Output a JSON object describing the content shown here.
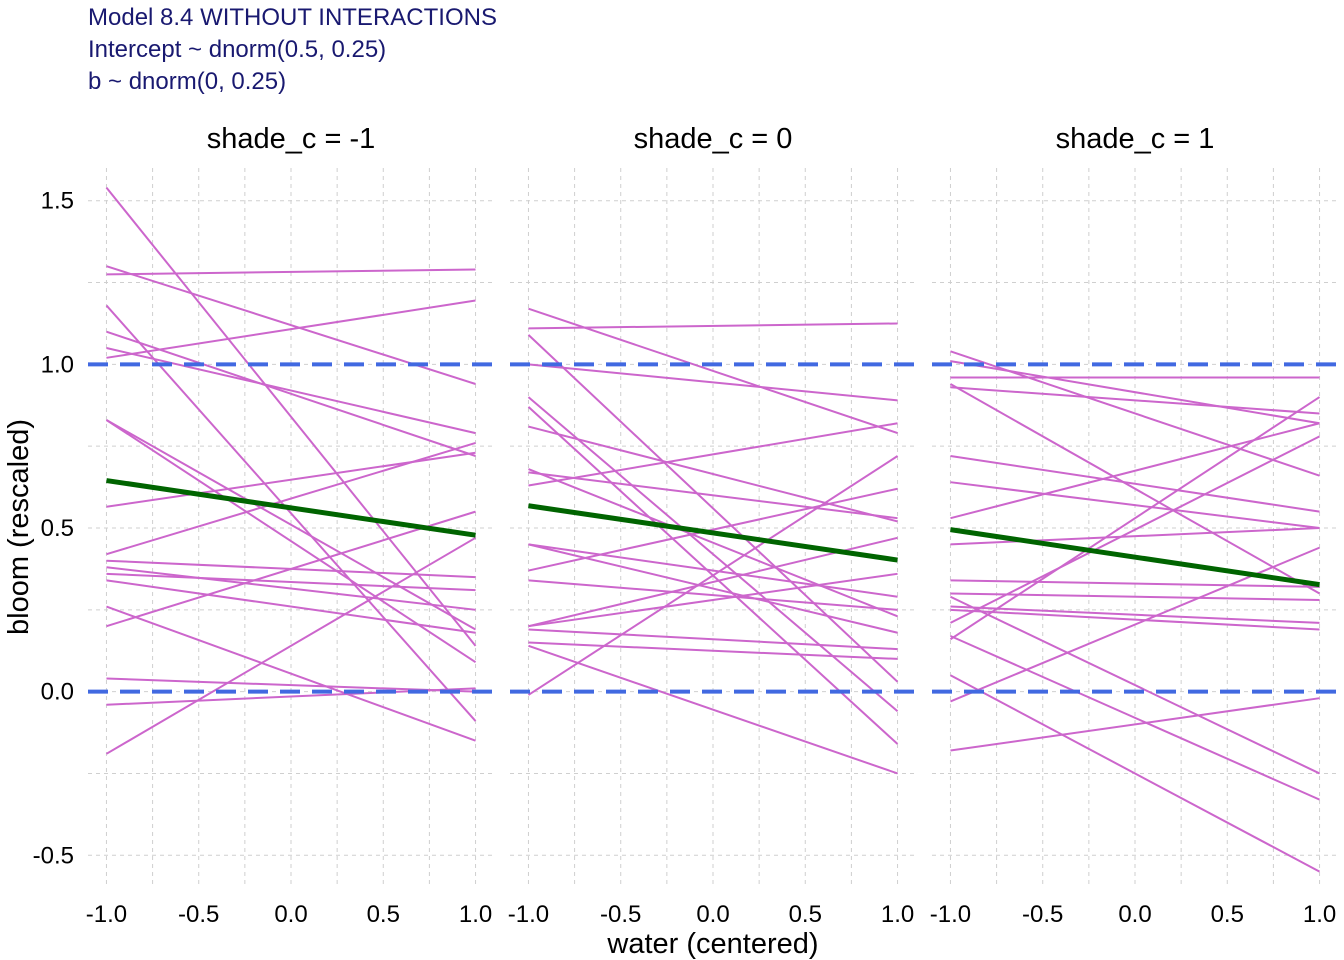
{
  "chart_data": {
    "type": "line",
    "title_lines": [
      "Model 8.4 WITHOUT INTERACTIONS",
      "Intercept ~ dnorm(0.5, 0.25)",
      "b ~ dnorm(0, 0.25)"
    ],
    "xlabel": "water (centered)",
    "ylabel": "bloom (rescaled)",
    "xlim": [
      -1.1,
      1.1
    ],
    "ylim": [
      -0.6,
      1.6
    ],
    "x_ticks": [
      "-1.0",
      "-0.5",
      "0.0",
      "0.5",
      "1.0"
    ],
    "x_tick_values": [
      -1,
      -0.5,
      0,
      0.5,
      1
    ],
    "y_ticks": [
      "-0.5",
      "0.0",
      "0.5",
      "1.0",
      "1.5"
    ],
    "y_tick_values": [
      -0.5,
      0,
      0.5,
      1,
      1.5
    ],
    "grid": true,
    "reference_lines": [
      0,
      1
    ],
    "colors": {
      "prior_lines": "#cc66cc",
      "mean_line": "#006400",
      "reference": "#4169e1",
      "title": "#191970",
      "grid": "#cfcfcf"
    },
    "panels": [
      {
        "label": "shade_c = -1",
        "mean_line": [
          [
            -1,
            0.645
          ],
          [
            1,
            0.478
          ]
        ],
        "prior_lines": [
          [
            [
              -1,
              1.54
            ],
            [
              1,
              0.14
            ]
          ],
          [
            [
              -1,
              1.3
            ],
            [
              1,
              0.94
            ]
          ],
          [
            [
              -1,
              1.275
            ],
            [
              1,
              1.29
            ]
          ],
          [
            [
              -1,
              1.18
            ],
            [
              1,
              -0.09
            ]
          ],
          [
            [
              -1,
              1.1
            ],
            [
              1,
              0.72
            ]
          ],
          [
            [
              -1,
              1.05
            ],
            [
              1,
              0.79
            ]
          ],
          [
            [
              -1,
              1.02
            ],
            [
              1,
              1.195
            ]
          ],
          [
            [
              -1,
              0.83
            ],
            [
              1,
              0.09
            ]
          ],
          [
            [
              -1,
              0.83
            ],
            [
              1,
              0.19
            ]
          ],
          [
            [
              -1,
              0.565
            ],
            [
              1,
              0.73
            ]
          ],
          [
            [
              -1,
              0.42
            ],
            [
              1,
              0.76
            ]
          ],
          [
            [
              -1,
              0.4
            ],
            [
              1,
              0.35
            ]
          ],
          [
            [
              -1,
              0.38
            ],
            [
              1,
              0.25
            ]
          ],
          [
            [
              -1,
              0.36
            ],
            [
              1,
              0.31
            ]
          ],
          [
            [
              -1,
              0.34
            ],
            [
              1,
              0.18
            ]
          ],
          [
            [
              -1,
              0.26
            ],
            [
              1,
              -0.15
            ]
          ],
          [
            [
              -1,
              0.2
            ],
            [
              1,
              0.55
            ]
          ],
          [
            [
              -1,
              0.04
            ],
            [
              1,
              0.0
            ]
          ],
          [
            [
              -1,
              -0.04
            ],
            [
              1,
              0.01
            ]
          ],
          [
            [
              -1,
              -0.19
            ],
            [
              1,
              0.47
            ]
          ]
        ]
      },
      {
        "label": "shade_c = 0",
        "mean_line": [
          [
            -1,
            0.568
          ],
          [
            1,
            0.402
          ]
        ],
        "prior_lines": [
          [
            [
              -1,
              1.17
            ],
            [
              1,
              0.79
            ]
          ],
          [
            [
              -1,
              1.11
            ],
            [
              1,
              1.125
            ]
          ],
          [
            [
              -1,
              1.09
            ],
            [
              1,
              0.03
            ]
          ],
          [
            [
              -1,
              1.0
            ],
            [
              1,
              0.89
            ]
          ],
          [
            [
              -1,
              0.9
            ],
            [
              1,
              -0.06
            ]
          ],
          [
            [
              -1,
              0.87
            ],
            [
              1,
              -0.16
            ]
          ],
          [
            [
              -1,
              0.81
            ],
            [
              1,
              0.52
            ]
          ],
          [
            [
              -1,
              0.68
            ],
            [
              1,
              0.23
            ]
          ],
          [
            [
              -1,
              0.67
            ],
            [
              1,
              0.53
            ]
          ],
          [
            [
              -1,
              0.63
            ],
            [
              1,
              0.82
            ]
          ],
          [
            [
              -1,
              0.45
            ],
            [
              1,
              0.18
            ]
          ],
          [
            [
              -1,
              0.37
            ],
            [
              1,
              0.62
            ]
          ],
          [
            [
              -1,
              0.34
            ],
            [
              1,
              0.25
            ]
          ],
          [
            [
              -1,
              0.2
            ],
            [
              1,
              0.36
            ]
          ],
          [
            [
              -1,
              0.2
            ],
            [
              1,
              0.47
            ]
          ],
          [
            [
              -1,
              0.19
            ],
            [
              1,
              0.13
            ]
          ],
          [
            [
              -1,
              0.15
            ],
            [
              1,
              0.1
            ]
          ],
          [
            [
              -1,
              0.14
            ],
            [
              1,
              -0.25
            ]
          ],
          [
            [
              -1,
              -0.01
            ],
            [
              1,
              0.72
            ]
          ],
          [
            [
              -1,
              0.45
            ],
            [
              1,
              0.29
            ]
          ]
        ]
      },
      {
        "label": "shade_c = 1",
        "mean_line": [
          [
            -1,
            0.495
          ],
          [
            1,
            0.327
          ]
        ],
        "prior_lines": [
          [
            [
              -1,
              1.04
            ],
            [
              1,
              0.66
            ]
          ],
          [
            [
              -1,
              1.01
            ],
            [
              1,
              0.82
            ]
          ],
          [
            [
              -1,
              0.96
            ],
            [
              1,
              0.96
            ]
          ],
          [
            [
              -1,
              0.94
            ],
            [
              1,
              0.3
            ]
          ],
          [
            [
              -1,
              0.93
            ],
            [
              1,
              0.85
            ]
          ],
          [
            [
              -1,
              0.72
            ],
            [
              1,
              0.55
            ]
          ],
          [
            [
              -1,
              0.64
            ],
            [
              1,
              0.5
            ]
          ],
          [
            [
              -1,
              0.53
            ],
            [
              1,
              0.82
            ]
          ],
          [
            [
              -1,
              0.45
            ],
            [
              1,
              0.5
            ]
          ],
          [
            [
              -1,
              0.34
            ],
            [
              1,
              0.32
            ]
          ],
          [
            [
              -1,
              0.3
            ],
            [
              1,
              0.28
            ]
          ],
          [
            [
              -1,
              0.29
            ],
            [
              1,
              -0.25
            ]
          ],
          [
            [
              -1,
              0.26
            ],
            [
              1,
              0.21
            ]
          ],
          [
            [
              -1,
              0.25
            ],
            [
              1,
              0.19
            ]
          ],
          [
            [
              -1,
              0.21
            ],
            [
              1,
              0.78
            ]
          ],
          [
            [
              -1,
              0.16
            ],
            [
              1,
              0.9
            ]
          ],
          [
            [
              -1,
              0.05
            ],
            [
              1,
              -0.55
            ]
          ],
          [
            [
              -1,
              -0.03
            ],
            [
              1,
              0.44
            ]
          ],
          [
            [
              -1,
              -0.18
            ],
            [
              1,
              -0.02
            ]
          ],
          [
            [
              -1,
              0.17
            ],
            [
              1,
              -0.33
            ]
          ]
        ]
      }
    ]
  }
}
